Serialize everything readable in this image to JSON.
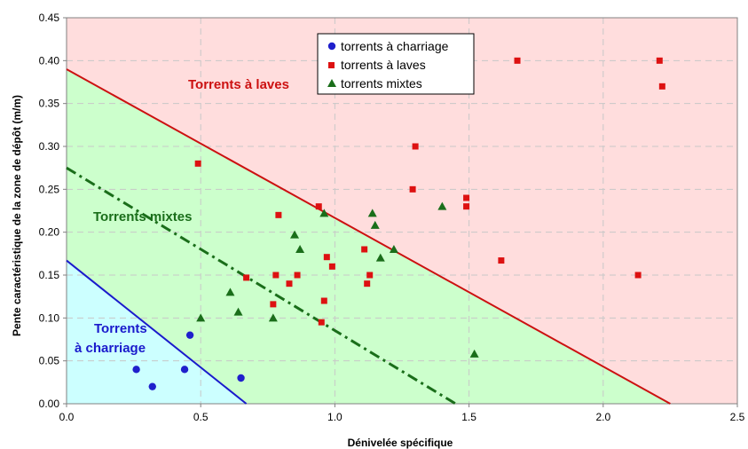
{
  "chart_data": {
    "type": "scatter",
    "xlabel": "Dénivelée spécifique",
    "ylabel": "Pente caractéristique de la zone de dépôt  (m/m)",
    "xlim": [
      0,
      2.5
    ],
    "ylim": [
      0,
      0.45
    ],
    "x_ticks": [
      "0.0",
      "0.5",
      "1.0",
      "1.5",
      "2.0",
      "2.5"
    ],
    "y_ticks": [
      "0.00",
      "0.05",
      "0.10",
      "0.15",
      "0.20",
      "0.25",
      "0.30",
      "0.35",
      "0.40",
      "0.45"
    ],
    "grid": true,
    "legend_position": "top-center",
    "zones": {
      "charriage": {
        "label_line1": "Torrents",
        "label_line2": "à charriage",
        "color": "#1a1acc",
        "fill": "#ccffff"
      },
      "mixtes": {
        "label": "Torrents mixtes",
        "color": "#1a6e1a",
        "fill": "#ccffcc"
      },
      "laves": {
        "label": "Torrents à laves",
        "color": "#cc1111",
        "fill": "#ffdddd"
      }
    },
    "lines": [
      {
        "name": "limit-laves",
        "points": [
          [
            0,
            0.39
          ],
          [
            2.25,
            0
          ]
        ],
        "color": "#cc1111",
        "style": "solid"
      },
      {
        "name": "limit-mixtes",
        "points": [
          [
            0,
            0.275
          ],
          [
            1.45,
            0
          ]
        ],
        "color": "#1a6e1a",
        "style": "dashdot"
      },
      {
        "name": "limit-charriage",
        "points": [
          [
            0,
            0.167
          ],
          [
            0.67,
            0
          ]
        ],
        "color": "#1a1acc",
        "style": "solid"
      }
    ],
    "series": [
      {
        "name": "torrents à charriage",
        "marker": "circle",
        "color": "#1f1fcc",
        "points": [
          [
            0.26,
            0.04
          ],
          [
            0.32,
            0.02
          ],
          [
            0.44,
            0.04
          ],
          [
            0.46,
            0.08
          ],
          [
            0.65,
            0.03
          ]
        ]
      },
      {
        "name": "torrents à laves",
        "marker": "square",
        "color": "#dd1111",
        "points": [
          [
            0.49,
            0.28
          ],
          [
            0.67,
            0.147
          ],
          [
            0.77,
            0.116
          ],
          [
            0.78,
            0.15
          ],
          [
            0.79,
            0.22
          ],
          [
            0.83,
            0.14
          ],
          [
            0.86,
            0.15
          ],
          [
            0.94,
            0.23
          ],
          [
            0.95,
            0.095
          ],
          [
            0.96,
            0.12
          ],
          [
            0.97,
            0.171
          ],
          [
            0.99,
            0.16
          ],
          [
            1.11,
            0.18
          ],
          [
            1.12,
            0.14
          ],
          [
            1.13,
            0.15
          ],
          [
            1.29,
            0.25
          ],
          [
            1.3,
            0.3
          ],
          [
            1.49,
            0.23
          ],
          [
            1.49,
            0.24
          ],
          [
            1.62,
            0.167
          ],
          [
            1.68,
            0.4
          ],
          [
            2.13,
            0.15
          ],
          [
            2.21,
            0.4
          ],
          [
            2.22,
            0.37
          ]
        ]
      },
      {
        "name": "torrents mixtes",
        "marker": "triangle",
        "color": "#1a6e1a",
        "points": [
          [
            0.5,
            0.1
          ],
          [
            0.61,
            0.13
          ],
          [
            0.64,
            0.107
          ],
          [
            0.77,
            0.1
          ],
          [
            0.85,
            0.197
          ],
          [
            0.87,
            0.18
          ],
          [
            0.96,
            0.222
          ],
          [
            1.14,
            0.222
          ],
          [
            1.15,
            0.208
          ],
          [
            1.17,
            0.17
          ],
          [
            1.22,
            0.18
          ],
          [
            1.4,
            0.23
          ],
          [
            1.52,
            0.058
          ]
        ]
      }
    ]
  }
}
